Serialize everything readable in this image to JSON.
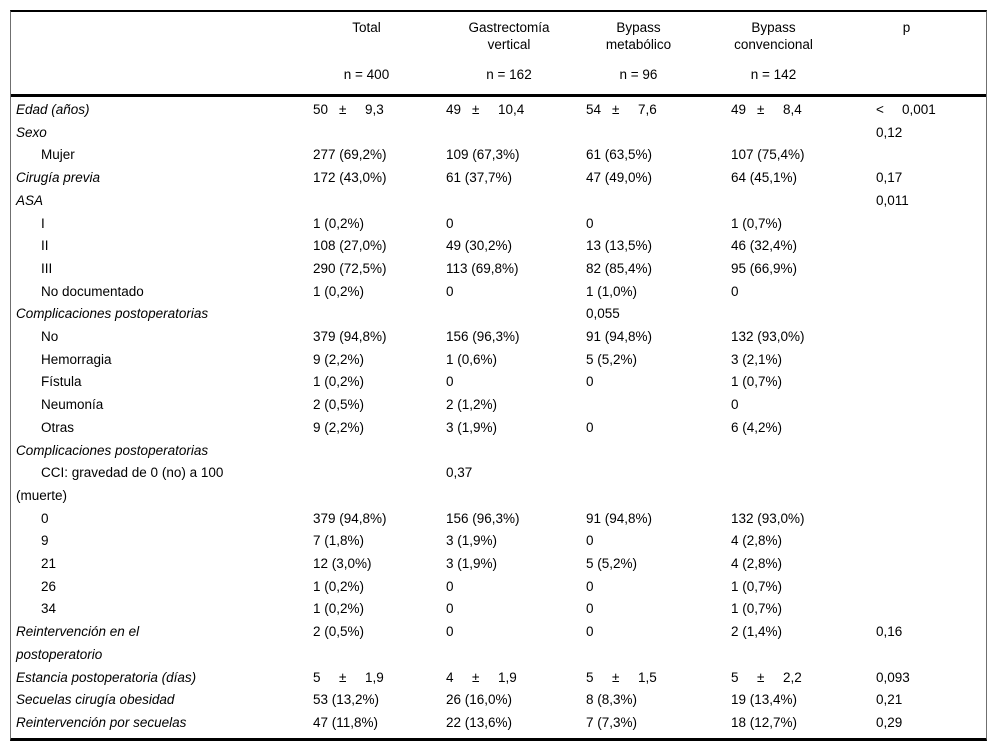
{
  "table": {
    "columns": [
      {
        "title": "Total",
        "n": "n = 400"
      },
      {
        "title": "Gastrectomía\nvertical",
        "n": "n = 162"
      },
      {
        "title": "Bypass\nmetabólico",
        "n": "n = 96"
      },
      {
        "title": "Bypass\nconvencional",
        "n": "n = 142"
      },
      {
        "title": "p",
        "n": ""
      }
    ],
    "rows": [
      {
        "label": "Edad (años)",
        "italic": true,
        "indent": false,
        "cells": [
          "50\t±\t9,3",
          "49\t±\t10,4",
          "54\t±\t7,6",
          "49\t±\t8,4",
          "<\t0,001"
        ]
      },
      {
        "label": "Sexo",
        "italic": true,
        "indent": false,
        "cells": [
          "",
          "",
          "",
          "",
          "0,12"
        ]
      },
      {
        "label": "Mujer",
        "italic": false,
        "indent": true,
        "cells": [
          "277 (69,2%)",
          "109 (67,3%)",
          "61 (63,5%)",
          "107 (75,4%)",
          ""
        ]
      },
      {
        "label": "Cirugía previa",
        "italic": true,
        "indent": false,
        "cells": [
          "172 (43,0%)",
          "61 (37,7%)",
          "47 (49,0%)",
          "64 (45,1%)",
          "0,17"
        ]
      },
      {
        "label": "ASA",
        "italic": true,
        "indent": false,
        "cells": [
          "",
          "",
          "",
          "",
          "0,011"
        ]
      },
      {
        "label": "I",
        "italic": false,
        "indent": true,
        "cells": [
          "1 (0,2%)",
          "0",
          "0",
          "1 (0,7%)",
          ""
        ]
      },
      {
        "label": "II",
        "italic": false,
        "indent": true,
        "cells": [
          "108 (27,0%)",
          "49 (30,2%)",
          "13 (13,5%)",
          "46 (32,4%)",
          ""
        ]
      },
      {
        "label": "III",
        "italic": false,
        "indent": true,
        "cells": [
          "290 (72,5%)",
          "113 (69,8%)",
          "82 (85,4%)",
          "95 (66,9%)",
          ""
        ]
      },
      {
        "label": "No documentado",
        "italic": false,
        "indent": true,
        "cells": [
          "1 (0,2%)",
          "0",
          "1 (1,0%)",
          "0",
          ""
        ]
      },
      {
        "label": "Complicaciones postoperatorias",
        "italic": true,
        "indent": false,
        "cells": [
          "",
          "",
          "0,055",
          "",
          ""
        ]
      },
      {
        "label": "No",
        "italic": false,
        "indent": true,
        "cells": [
          "379 (94,8%)",
          "156 (96,3%)",
          "91 (94,8%)",
          "132 (93,0%)",
          ""
        ]
      },
      {
        "label": "Hemorragia",
        "italic": false,
        "indent": true,
        "cells": [
          "9 (2,2%)",
          "1 (0,6%)",
          "5 (5,2%)",
          "3 (2,1%)",
          ""
        ]
      },
      {
        "label": "Fístula",
        "italic": false,
        "indent": true,
        "cells": [
          "1 (0,2%)",
          "0",
          "0",
          "1 (0,7%)",
          ""
        ]
      },
      {
        "label": "Neumonía",
        "italic": false,
        "indent": true,
        "cells": [
          "2 (0,5%)",
          "2 (1,2%)",
          "",
          "0",
          ""
        ]
      },
      {
        "label": "Otras",
        "italic": false,
        "indent": true,
        "cells": [
          "9 (2,2%)",
          "3 (1,9%)",
          "0",
          "6 (4,2%)",
          ""
        ]
      },
      {
        "label": "Complicaciones postoperatorias",
        "italic": true,
        "indent": false,
        "cells": [
          "",
          "",
          "",
          "",
          ""
        ]
      },
      {
        "label": "CCI: gravedad de 0 (no) a 100\n(muerte)",
        "italic": false,
        "indent": true,
        "cells": [
          "",
          "0,37",
          "",
          "",
          ""
        ]
      },
      {
        "label": "0",
        "italic": false,
        "indent": true,
        "cells": [
          "379 (94,8%)",
          "156 (96,3%)",
          "91 (94,8%)",
          "132 (93,0%)",
          ""
        ]
      },
      {
        "label": "9",
        "italic": false,
        "indent": true,
        "cells": [
          "7 (1,8%)",
          "3 (1,9%)",
          "0",
          "4 (2,8%)",
          ""
        ]
      },
      {
        "label": "21",
        "italic": false,
        "indent": true,
        "cells": [
          "12 (3,0%)",
          "3 (1,9%)",
          "5 (5,2%)",
          "4 (2,8%)",
          ""
        ]
      },
      {
        "label": "26",
        "italic": false,
        "indent": true,
        "cells": [
          "1 (0,2%)",
          "0",
          "0",
          "1 (0,7%)",
          ""
        ]
      },
      {
        "label": "34",
        "italic": false,
        "indent": true,
        "cells": [
          "1 (0,2%)",
          "0",
          "0",
          "1 (0,7%)",
          ""
        ]
      },
      {
        "label": "Reintervención en el\npostoperatorio",
        "italic": true,
        "indent": false,
        "cells": [
          "2 (0,5%)",
          "0",
          "0",
          "2 (1,4%)",
          "0,16"
        ]
      },
      {
        "label": "Estancia postoperatoria (días)",
        "italic": true,
        "indent": false,
        "cells": [
          "5\t±\t1,9",
          "4\t±\t1,9",
          "5\t±\t1,5",
          "5\t±\t2,2",
          "0,093"
        ]
      },
      {
        "label": "Secuelas cirugía obesidad",
        "italic": true,
        "indent": false,
        "cells": [
          "53 (13,2%)",
          "26 (16,0%)",
          "8 (8,3%)",
          "19 (13,4%)",
          "0,21"
        ]
      },
      {
        "label": "Reintervención por secuelas",
        "italic": true,
        "indent": false,
        "cells": [
          "47 (11,8%)",
          "22 (13,6%)",
          "7 (7,3%)",
          "18 (12,7%)",
          "0,29"
        ]
      }
    ]
  }
}
